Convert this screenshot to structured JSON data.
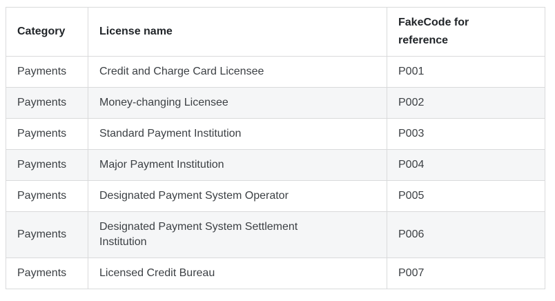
{
  "table": {
    "columns": [
      {
        "label": "Category"
      },
      {
        "label": "License name"
      },
      {
        "label": "FakeCode for reference"
      }
    ],
    "rows": [
      {
        "category": "Payments",
        "license": "Credit and Charge Card Licensee",
        "code": "P001"
      },
      {
        "category": "Payments",
        "license": "Money-changing Licensee",
        "code": "P002"
      },
      {
        "category": "Payments",
        "license": "Standard Payment Institution",
        "code": "P003"
      },
      {
        "category": "Payments",
        "license": "Major Payment Institution",
        "code": "P004"
      },
      {
        "category": "Payments",
        "license": "Designated Payment System Operator",
        "code": "P005"
      },
      {
        "category": "Payments",
        "license": "Designated Payment System Settlement Institution",
        "code": "P006"
      },
      {
        "category": "Payments",
        "license": "Licensed Credit Bureau",
        "code": "P007"
      }
    ],
    "colors": {
      "stripe": "#f5f6f7",
      "border": "#d9dadb",
      "header_text": "#212529",
      "cell_text": "#3c4044"
    }
  }
}
